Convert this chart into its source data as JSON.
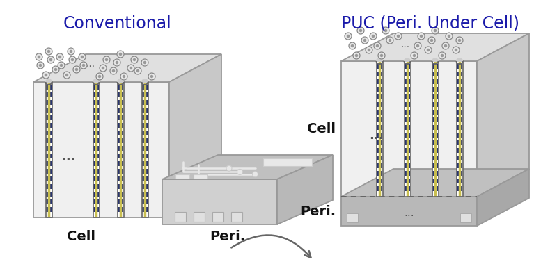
{
  "title_left": "Conventional",
  "title_right": "PUC (Peri. Under Cell)",
  "title_color": "#1a1aaa",
  "title_fontsize": 17,
  "bg_color": "#ffffff",
  "label_cell_left": "Cell",
  "label_peri_left": "Peri.",
  "label_cell_right": "Cell",
  "label_peri_right": "Peri.",
  "label_fontsize": 13,
  "face_color": "#f0f0f0",
  "top_color": "#e0e0e0",
  "side_color": "#c8c8c8",
  "edge_color": "#999999",
  "peri_face": "#d0d0d0",
  "peri_top": "#c0c0c0",
  "peri_side": "#b8b8b8",
  "peri_dark_face": "#b8b8b8",
  "peri_dark_side": "#a8a8a8",
  "pillar_bg": "#ffffff",
  "pillar_blue": "#2a3570",
  "pillar_yellow": "#c8be50",
  "pillar_edge": "#666666",
  "circle_face": "#e8e8e8",
  "circle_edge": "#888888",
  "circle_inner": "#999999"
}
